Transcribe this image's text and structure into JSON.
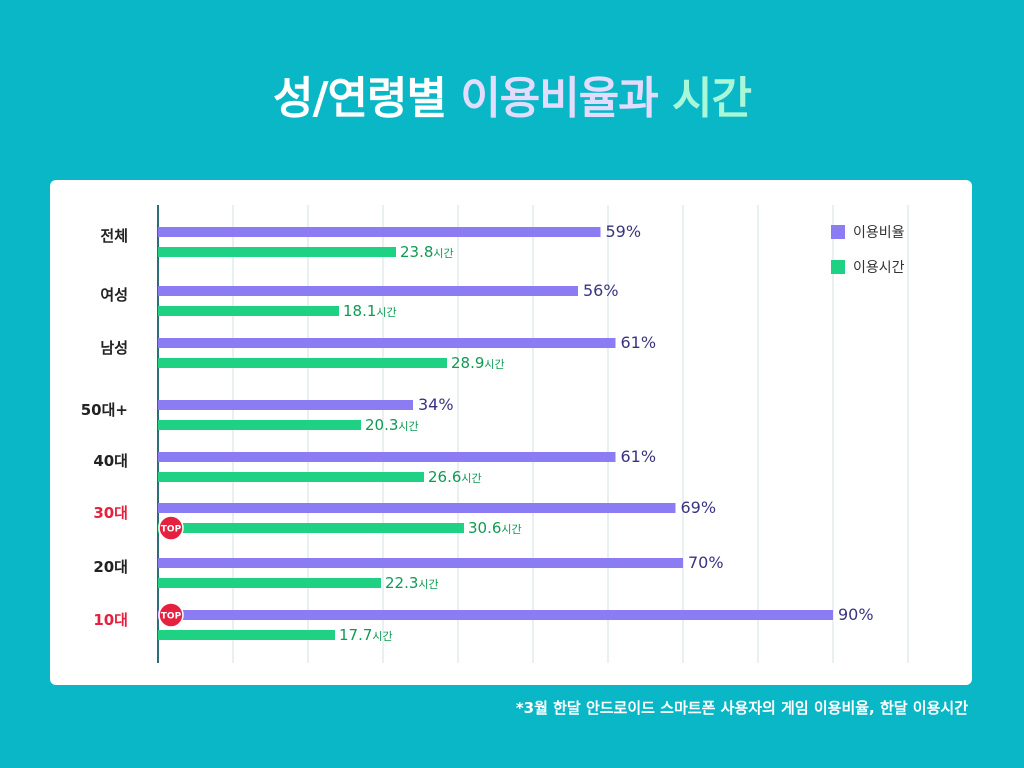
{
  "title": {
    "part1": "성/연령별",
    "part2": "이용비율과",
    "part3": "시간"
  },
  "footnote": "*3월 한달 안드로이드 스마트폰 사용자의 게임 이용비율, 한달 이용시간",
  "colors": {
    "background": "#0ab7c6",
    "rate_bar": "#8c7cf4",
    "time_bar": "#1fd182",
    "highlight_label": "#e6213f",
    "top_badge": "#e6213f",
    "rate_text": "#3a3480",
    "time_text": "#0f9a55"
  },
  "chart_data": {
    "type": "bar",
    "orientation": "horizontal",
    "title": "성/연령별 이용비율과 시간",
    "categories": [
      "전체",
      "여성",
      "남성",
      "50대+",
      "40대",
      "30대",
      "20대",
      "10대"
    ],
    "highlighted_categories": [
      "30대",
      "10대"
    ],
    "series": [
      {
        "name": "이용비율",
        "unit": "%",
        "values": [
          59,
          56,
          61,
          34,
          61,
          69,
          70,
          90
        ],
        "labels": [
          "59%",
          "56%",
          "61%",
          "34%",
          "61%",
          "69%",
          "70%",
          "90%"
        ]
      },
      {
        "name": "이용시간",
        "unit": "시간",
        "values": [
          23.8,
          18.1,
          28.9,
          20.3,
          26.6,
          30.6,
          22.3,
          17.7
        ],
        "labels": [
          "23.8",
          "18.1",
          "28.9",
          "20.3",
          "26.6",
          "30.6",
          "22.3",
          "17.7"
        ]
      }
    ],
    "top_badges": [
      {
        "category": "30대",
        "series": "이용시간",
        "label": "TOP"
      },
      {
        "category": "10대",
        "series": "이용비율",
        "label": "TOP"
      }
    ],
    "xlim_rate": [
      0,
      100
    ],
    "xlim_time": [
      0,
      75
    ],
    "grid": true,
    "legend": {
      "position": "top-right",
      "entries": [
        "이용비율",
        "이용시간"
      ]
    }
  }
}
